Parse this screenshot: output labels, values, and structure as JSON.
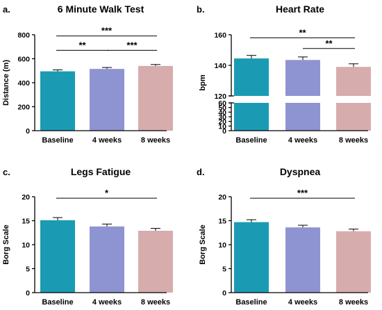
{
  "colors": {
    "baseline": "#1a9bb3",
    "weeks4": "#8e93d1",
    "weeks8": "#d7acad"
  },
  "chart_data": [
    {
      "panel_label": "a.",
      "type": "bar",
      "title": "6 Minute Walk Test",
      "ylabel": "Distance (m)",
      "categories": [
        "Baseline",
        "4 weeks",
        "8 weeks"
      ],
      "values": [
        495,
        515,
        540
      ],
      "errors": [
        12,
        12,
        12
      ],
      "ylim": [
        0,
        800
      ],
      "yticks": [
        0,
        200,
        400,
        600,
        800
      ],
      "significance": [
        {
          "from": 0,
          "to": 2,
          "label": "***",
          "y": 790
        },
        {
          "from": 0,
          "to": 1,
          "label": "**",
          "y": 670
        },
        {
          "from": 1,
          "to": 2,
          "label": "***",
          "y": 670
        }
      ]
    },
    {
      "panel_label": "b.",
      "type": "bar",
      "title": "Heart Rate",
      "ylabel": "bpm",
      "categories": [
        "Baseline",
        "4 weeks",
        "8 weeks"
      ],
      "values": [
        144.5,
        143.5,
        139
      ],
      "errors": [
        2,
        2,
        2
      ],
      "broken_axis": true,
      "lower_range": [
        0,
        60
      ],
      "upper_range": [
        120,
        160
      ],
      "yticks_lower": [
        0,
        10,
        20,
        30,
        40,
        50,
        60
      ],
      "yticks_upper": [
        120,
        140,
        160
      ],
      "significance": [
        {
          "from": 0,
          "to": 2,
          "label": "**",
          "y": 158
        },
        {
          "from": 1,
          "to": 2,
          "label": "**",
          "y": 151
        }
      ]
    },
    {
      "panel_label": "c.",
      "type": "bar",
      "title": "Legs Fatigue",
      "ylabel": "Borg Scale",
      "categories": [
        "Baseline",
        "4 weeks",
        "8 weeks"
      ],
      "values": [
        15.1,
        13.8,
        12.9
      ],
      "errors": [
        0.55,
        0.5,
        0.5
      ],
      "ylim": [
        0,
        20
      ],
      "yticks": [
        0,
        5,
        10,
        15,
        20
      ],
      "significance": [
        {
          "from": 0,
          "to": 2,
          "label": "*",
          "y": 19.7
        }
      ]
    },
    {
      "panel_label": "d.",
      "type": "bar",
      "title": "Dyspnea",
      "ylabel": "Borg Scale",
      "categories": [
        "Baseline",
        "4 weeks",
        "8 weeks"
      ],
      "values": [
        14.7,
        13.6,
        12.8
      ],
      "errors": [
        0.5,
        0.45,
        0.45
      ],
      "ylim": [
        0,
        20
      ],
      "yticks": [
        0,
        5,
        10,
        15,
        20
      ],
      "significance": [
        {
          "from": 0,
          "to": 2,
          "label": "***",
          "y": 19.7
        }
      ]
    }
  ]
}
